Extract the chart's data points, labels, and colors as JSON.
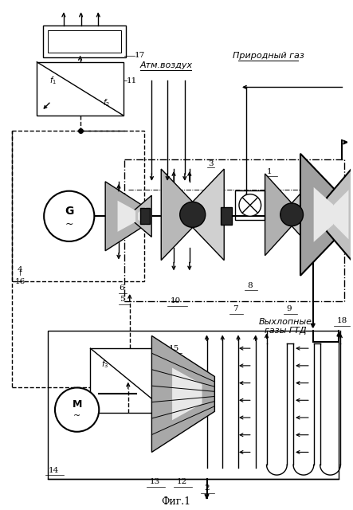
{
  "title": "Фиг.1",
  "label_atm": "Атм.воздух",
  "label_gas": "Природный газ",
  "label_exhaust": "Выхлопные\nгазы ГТД",
  "bg_color": "#ffffff",
  "line_color": "#000000",
  "gray_light": "#d8d8d8",
  "gray_mid": "#b0b0b0",
  "gray_dark": "#505050"
}
